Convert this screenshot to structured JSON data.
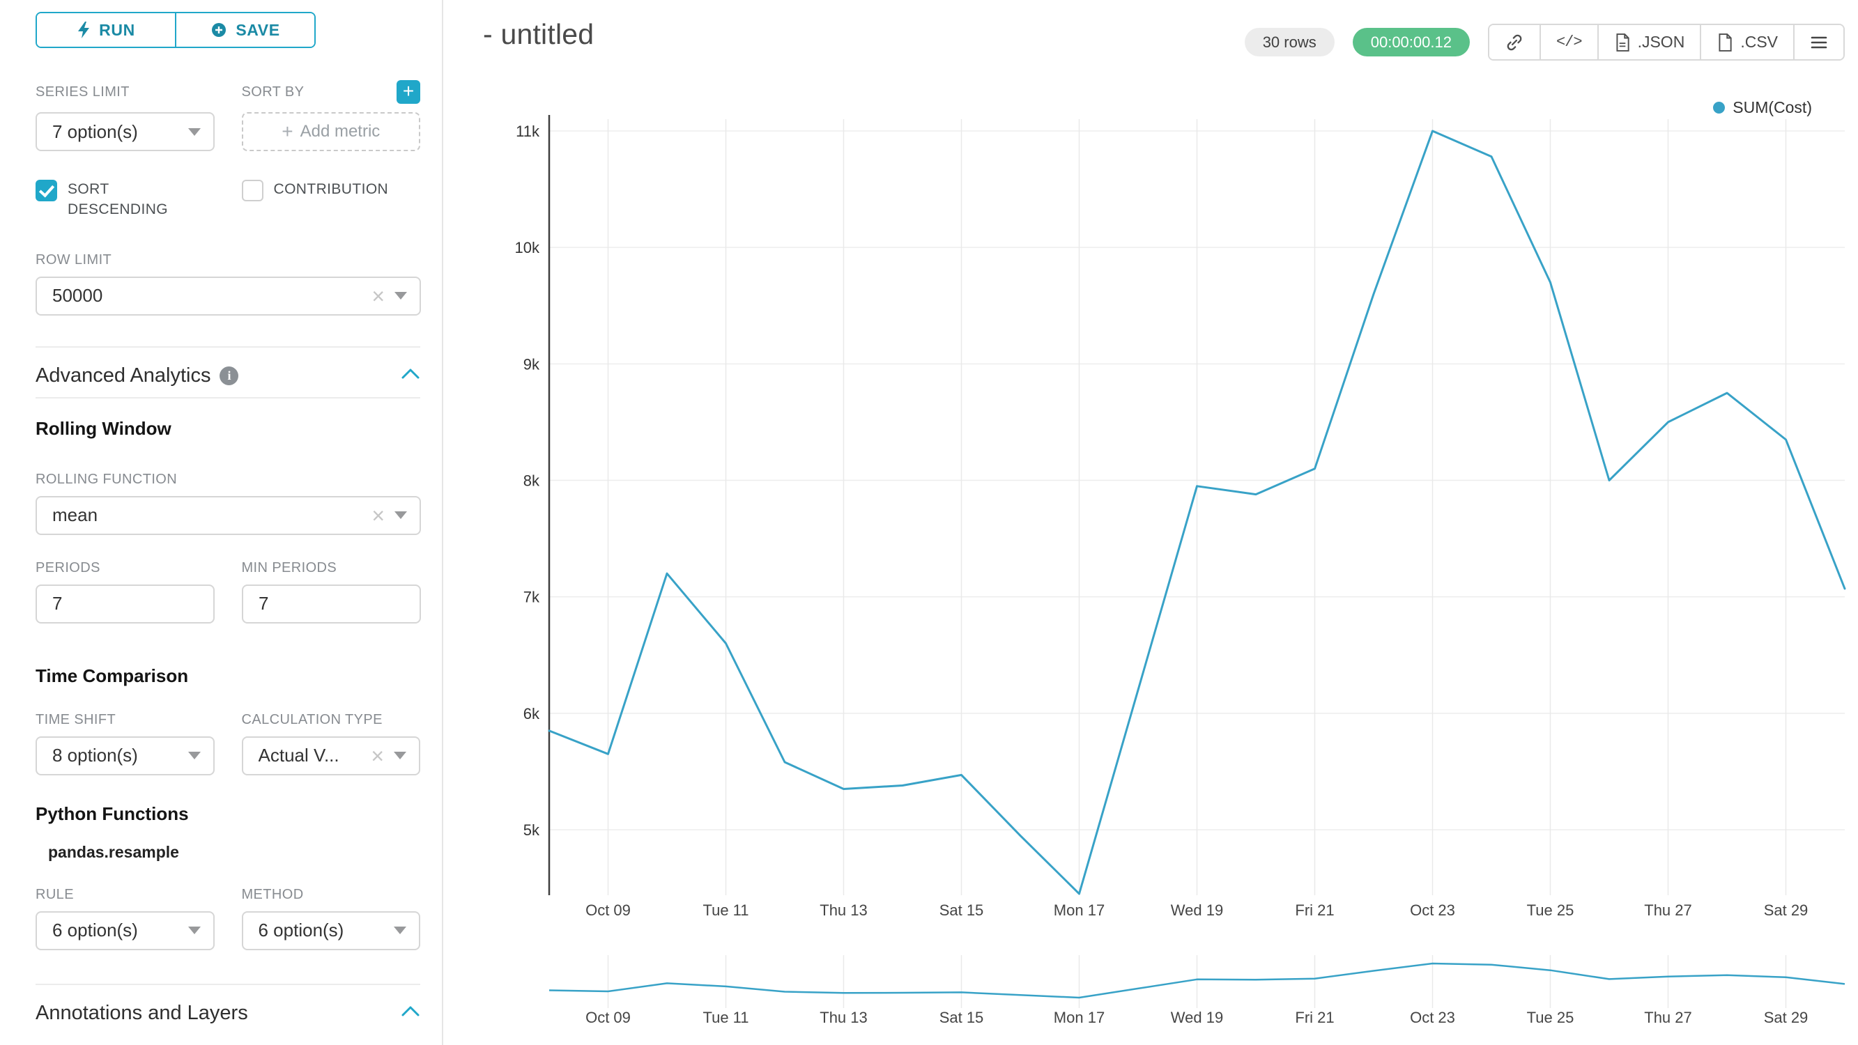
{
  "sidebar": {
    "run_label": "RUN",
    "save_label": "SAVE",
    "series_limit": {
      "label": "SERIES LIMIT",
      "value": "7 option(s)"
    },
    "sort_by": {
      "label": "SORT BY",
      "placeholder": "Add metric"
    },
    "sort_descending": {
      "label": "SORT DESCENDING",
      "checked": true
    },
    "contribution": {
      "label": "CONTRIBUTION",
      "checked": false
    },
    "row_limit": {
      "label": "ROW LIMIT",
      "value": "50000"
    },
    "advanced_analytics": {
      "title": "Advanced Analytics"
    },
    "rolling_window": {
      "title": "Rolling Window",
      "rolling_function": {
        "label": "ROLLING FUNCTION",
        "value": "mean"
      },
      "periods": {
        "label": "PERIODS",
        "value": "7"
      },
      "min_periods": {
        "label": "MIN PERIODS",
        "value": "7"
      }
    },
    "time_comparison": {
      "title": "Time Comparison",
      "time_shift": {
        "label": "TIME SHIFT",
        "value": "8 option(s)"
      },
      "calculation_type": {
        "label": "CALCULATION TYPE",
        "value": "Actual V..."
      }
    },
    "python_functions": {
      "title": "Python Functions",
      "subtitle": "pandas.resample",
      "rule": {
        "label": "RULE",
        "value": "6 option(s)"
      },
      "method": {
        "label": "METHOD",
        "value": "6 option(s)"
      }
    },
    "annotations": {
      "title": "Annotations and Layers"
    }
  },
  "header": {
    "title": "- untitled",
    "rows_badge": "30 rows",
    "timer_badge": "00:00:00.12",
    "code_label": "</>",
    "json_label": ".JSON",
    "csv_label": ".CSV"
  },
  "chart_data": {
    "type": "line",
    "title": "",
    "legend": [
      {
        "name": "SUM(Cost)",
        "color": "#38a2c7"
      }
    ],
    "x": [
      "Oct 08",
      "Oct 09",
      "Oct 10",
      "Oct 11",
      "Oct 12",
      "Oct 13",
      "Oct 14",
      "Oct 15",
      "Oct 16",
      "Oct 17",
      "Oct 18",
      "Oct 19",
      "Oct 20",
      "Oct 21",
      "Oct 22",
      "Oct 23",
      "Oct 24",
      "Oct 25",
      "Oct 26",
      "Oct 27",
      "Oct 28",
      "Oct 29",
      "Oct 30"
    ],
    "series": [
      {
        "name": "SUM(Cost)",
        "values": [
          5850,
          5650,
          7200,
          6600,
          5580,
          5350,
          5380,
          5470,
          4950,
          4450,
          6200,
          7950,
          7880,
          8100,
          9600,
          11000,
          10780,
          9700,
          8000,
          8500,
          8750,
          8350,
          7070
        ]
      }
    ],
    "x_tick_indices": [
      1,
      3,
      5,
      7,
      9,
      11,
      13,
      15,
      17,
      19,
      21
    ],
    "x_tick_labels": [
      "Oct 09",
      "Tue 11",
      "Thu 13",
      "Sat 15",
      "Mon 17",
      "Wed 19",
      "Fri 21",
      "Oct 23",
      "Tue 25",
      "Thu 27",
      "Sat 29"
    ],
    "y_ticks": [
      5000,
      6000,
      7000,
      8000,
      9000,
      10000,
      11000
    ],
    "y_tick_labels": [
      "5k",
      "6k",
      "7k",
      "8k",
      "9k",
      "10k",
      "11k"
    ],
    "ylim": [
      4400,
      11100
    ],
    "xlabel": "",
    "ylabel": "",
    "grid": true,
    "legend_position": "top-right",
    "has_mini_range_chart": true
  }
}
